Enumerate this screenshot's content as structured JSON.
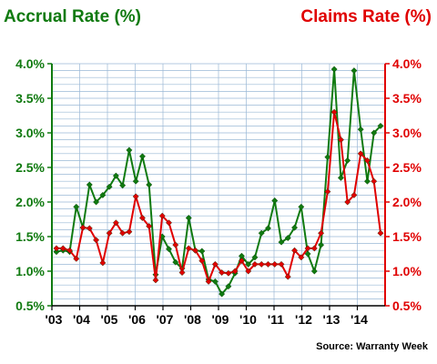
{
  "colors": {
    "accrual": "#107A10",
    "claims": "#E00000",
    "grid": "#9AB8D6",
    "plot_bg": "#FFFFFF"
  },
  "chart_data": {
    "type": "line",
    "title_left": "Accrual Rate (%)",
    "title_right": "Claims Rate (%)",
    "source": "Source: Warranty Week",
    "ylim": [
      0.5,
      4.0
    ],
    "y_ticks": [
      "4.0%",
      "3.5%",
      "3.0%",
      "2.5%",
      "2.0%",
      "1.5%",
      "1.0%",
      "0.5%"
    ],
    "x_ticks": [
      "'03",
      "'04",
      "'05",
      "'06",
      "'07",
      "'08",
      "'09",
      "'10",
      "'11",
      "'12",
      "'13",
      "'14"
    ],
    "grid": true,
    "x_start_year": 2003,
    "series": [
      {
        "name": "Accrual Rate (%)",
        "axis": "left",
        "values": [
          1.28,
          1.3,
          1.28,
          1.93,
          1.63,
          2.25,
          2.0,
          2.1,
          2.22,
          2.38,
          2.24,
          2.75,
          2.3,
          2.66,
          2.25,
          0.95,
          1.5,
          1.32,
          1.13,
          1.04,
          1.77,
          1.3,
          1.29,
          0.88,
          0.85,
          0.67,
          0.78,
          0.97,
          1.22,
          1.1,
          1.2,
          1.55,
          1.62,
          2.02,
          1.42,
          1.48,
          1.63,
          1.93,
          1.25,
          1.0,
          1.38,
          2.65,
          3.92,
          2.35,
          2.6,
          3.9,
          3.05,
          2.3,
          3.0,
          3.1
        ]
      },
      {
        "name": "Claims Rate (%)",
        "axis": "right",
        "values": [
          1.33,
          1.33,
          1.3,
          1.18,
          1.63,
          1.62,
          1.45,
          1.12,
          1.55,
          1.7,
          1.55,
          1.57,
          2.08,
          1.77,
          1.65,
          0.87,
          1.8,
          1.7,
          1.38,
          0.98,
          1.33,
          1.3,
          1.15,
          0.85,
          1.1,
          0.98,
          0.97,
          1.0,
          1.15,
          1.0,
          1.1,
          1.1,
          1.1,
          1.1,
          1.1,
          0.92,
          1.3,
          1.2,
          1.33,
          1.33,
          1.55,
          2.15,
          3.3,
          2.9,
          2.0,
          2.1,
          2.7,
          2.6,
          2.3,
          1.55
        ]
      }
    ]
  }
}
